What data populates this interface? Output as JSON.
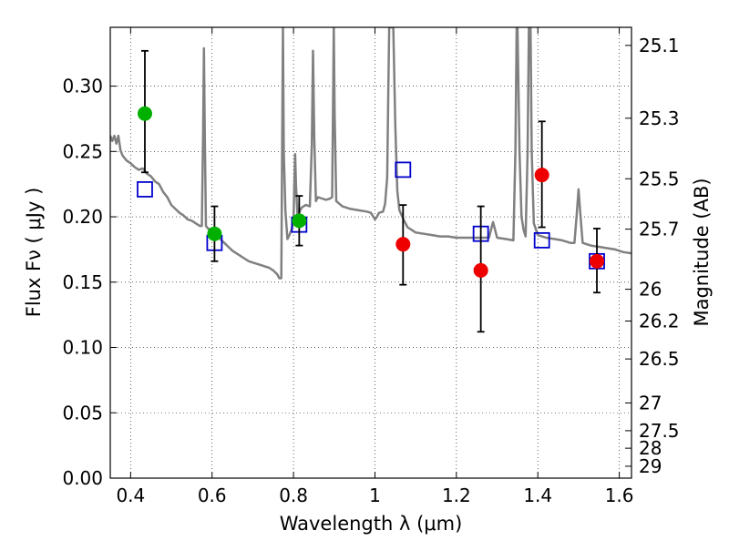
{
  "chart_data": {
    "type": "scatter",
    "title": "",
    "xlabel": "Wavelength  λ (μm)",
    "ylabel": "Flux  Fν  ( μJy )",
    "ylabel_right": "Magnitude (AB)",
    "xlim": [
      0.35,
      1.63
    ],
    "ylim": [
      0.0,
      0.345
    ],
    "x_ticks": [
      0.4,
      0.6,
      0.8,
      1.0,
      1.2,
      1.4,
      1.6
    ],
    "x_tick_labels": [
      "0.4",
      "0.6",
      "0.8",
      "1",
      "1.2",
      "1.4",
      "1.6"
    ],
    "y_ticks": [
      0.0,
      0.05,
      0.1,
      0.15,
      0.2,
      0.25,
      0.3
    ],
    "y_tick_labels": [
      "0.00",
      "0.05",
      "0.10",
      "0.15",
      "0.20",
      "0.25",
      "0.30"
    ],
    "right_ticks": [
      {
        "label": "25.1",
        "mag": 25.1
      },
      {
        "label": "25.3",
        "mag": 25.3
      },
      {
        "label": "25.5",
        "mag": 25.5
      },
      {
        "label": "25.7",
        "mag": 25.7
      },
      {
        "label": "26",
        "mag": 26.0
      },
      {
        "label": "26.2",
        "mag": 26.2
      },
      {
        "label": "26.5",
        "mag": 26.5
      },
      {
        "label": "27",
        "mag": 27.0
      },
      {
        "label": "27.5",
        "mag": 27.5
      },
      {
        "label": "28",
        "mag": 28.0
      },
      {
        "label": "29",
        "mag": 29.0
      }
    ],
    "grid": true,
    "colors": {
      "model": "#808080",
      "green": "#00b000",
      "red": "#ee0000",
      "box": "#0000cc",
      "errorbar": "#000000"
    },
    "series": [
      {
        "kind": "model-line",
        "points": [
          [
            0.35,
            0.262
          ],
          [
            0.355,
            0.258
          ],
          [
            0.36,
            0.262
          ],
          [
            0.365,
            0.256
          ],
          [
            0.37,
            0.262
          ],
          [
            0.375,
            0.251
          ],
          [
            0.38,
            0.247
          ],
          [
            0.39,
            0.243
          ],
          [
            0.4,
            0.241
          ],
          [
            0.41,
            0.238
          ],
          [
            0.42,
            0.236
          ],
          [
            0.43,
            0.237
          ],
          [
            0.44,
            0.233
          ],
          [
            0.45,
            0.231
          ],
          [
            0.46,
            0.227
          ],
          [
            0.47,
            0.225
          ],
          [
            0.48,
            0.219
          ],
          [
            0.49,
            0.215
          ],
          [
            0.5,
            0.209
          ],
          [
            0.51,
            0.206
          ],
          [
            0.52,
            0.203
          ],
          [
            0.53,
            0.201
          ],
          [
            0.54,
            0.198
          ],
          [
            0.55,
            0.197
          ],
          [
            0.56,
            0.195
          ],
          [
            0.57,
            0.193
          ],
          [
            0.575,
            0.193
          ],
          [
            0.578,
            0.265
          ],
          [
            0.58,
            0.329
          ],
          [
            0.582,
            0.265
          ],
          [
            0.585,
            0.193
          ],
          [
            0.59,
            0.191
          ],
          [
            0.6,
            0.19
          ],
          [
            0.61,
            0.186
          ],
          [
            0.62,
            0.183
          ],
          [
            0.63,
            0.18
          ],
          [
            0.64,
            0.177
          ],
          [
            0.65,
            0.174
          ],
          [
            0.66,
            0.172
          ],
          [
            0.67,
            0.17
          ],
          [
            0.68,
            0.168
          ],
          [
            0.69,
            0.166
          ],
          [
            0.7,
            0.165
          ],
          [
            0.71,
            0.164
          ],
          [
            0.72,
            0.163
          ],
          [
            0.73,
            0.162
          ],
          [
            0.74,
            0.161
          ],
          [
            0.75,
            0.159
          ],
          [
            0.76,
            0.156
          ],
          [
            0.765,
            0.153
          ],
          [
            0.77,
            0.153
          ],
          [
            0.772,
            0.25
          ],
          [
            0.774,
            0.345
          ],
          [
            0.776,
            0.25
          ],
          [
            0.78,
            0.205
          ],
          [
            0.785,
            0.183
          ],
          [
            0.79,
            0.186
          ],
          [
            0.795,
            0.19
          ],
          [
            0.8,
            0.197
          ],
          [
            0.802,
            0.225
          ],
          [
            0.804,
            0.248
          ],
          [
            0.806,
            0.225
          ],
          [
            0.81,
            0.199
          ],
          [
            0.815,
            0.204
          ],
          [
            0.82,
            0.207
          ],
          [
            0.83,
            0.209
          ],
          [
            0.84,
            0.208
          ],
          [
            0.845,
            0.255
          ],
          [
            0.848,
            0.327
          ],
          [
            0.851,
            0.26
          ],
          [
            0.855,
            0.212
          ],
          [
            0.86,
            0.215
          ],
          [
            0.87,
            0.214
          ],
          [
            0.88,
            0.213
          ],
          [
            0.89,
            0.214
          ],
          [
            0.895,
            0.215
          ],
          [
            0.897,
            0.28
          ],
          [
            0.899,
            0.345
          ],
          [
            0.901,
            0.28
          ],
          [
            0.905,
            0.212
          ],
          [
            0.92,
            0.208
          ],
          [
            0.94,
            0.206
          ],
          [
            0.96,
            0.205
          ],
          [
            0.98,
            0.204
          ],
          [
            0.99,
            0.203
          ],
          [
            1.0,
            0.198
          ],
          [
            1.005,
            0.2
          ],
          [
            1.01,
            0.203
          ],
          [
            1.02,
            0.204
          ],
          [
            1.025,
            0.21
          ],
          [
            1.03,
            0.23
          ],
          [
            1.033,
            0.3
          ],
          [
            1.035,
            0.345
          ],
          [
            1.045,
            0.345
          ],
          [
            1.05,
            0.27
          ],
          [
            1.055,
            0.22
          ],
          [
            1.06,
            0.205
          ],
          [
            1.07,
            0.198
          ],
          [
            1.08,
            0.192
          ],
          [
            1.1,
            0.188
          ],
          [
            1.12,
            0.187
          ],
          [
            1.14,
            0.186
          ],
          [
            1.16,
            0.185
          ],
          [
            1.18,
            0.185
          ],
          [
            1.2,
            0.184
          ],
          [
            1.22,
            0.184
          ],
          [
            1.24,
            0.184
          ],
          [
            1.26,
            0.184
          ],
          [
            1.28,
            0.184
          ],
          [
            1.285,
            0.19
          ],
          [
            1.29,
            0.196
          ],
          [
            1.295,
            0.19
          ],
          [
            1.3,
            0.184
          ],
          [
            1.32,
            0.183
          ],
          [
            1.34,
            0.182
          ],
          [
            1.345,
            0.25
          ],
          [
            1.348,
            0.345
          ],
          [
            1.35,
            0.345
          ],
          [
            1.355,
            0.25
          ],
          [
            1.36,
            0.2
          ],
          [
            1.365,
            0.19
          ],
          [
            1.37,
            0.185
          ],
          [
            1.375,
            0.25
          ],
          [
            1.378,
            0.345
          ],
          [
            1.382,
            0.345
          ],
          [
            1.385,
            0.25
          ],
          [
            1.39,
            0.195
          ],
          [
            1.4,
            0.186
          ],
          [
            1.42,
            0.184
          ],
          [
            1.44,
            0.183
          ],
          [
            1.46,
            0.182
          ],
          [
            1.47,
            0.181
          ],
          [
            1.48,
            0.18
          ],
          [
            1.49,
            0.18
          ],
          [
            1.495,
            0.2
          ],
          [
            1.5,
            0.221
          ],
          [
            1.505,
            0.2
          ],
          [
            1.51,
            0.18
          ],
          [
            1.53,
            0.178
          ],
          [
            1.55,
            0.177
          ],
          [
            1.57,
            0.176
          ],
          [
            1.59,
            0.175
          ],
          [
            1.61,
            0.173
          ],
          [
            1.63,
            0.172
          ]
        ]
      },
      {
        "kind": "model-boxes",
        "points": [
          {
            "x": 0.435,
            "y": 0.221
          },
          {
            "x": 0.606,
            "y": 0.18
          },
          {
            "x": 0.814,
            "y": 0.194
          },
          {
            "x": 1.069,
            "y": 0.236
          },
          {
            "x": 1.26,
            "y": 0.187
          },
          {
            "x": 1.41,
            "y": 0.182
          },
          {
            "x": 1.545,
            "y": 0.166
          }
        ]
      },
      {
        "kind": "observed-green",
        "points": [
          {
            "x": 0.435,
            "y": 0.279,
            "yerr_lo": 0.234,
            "yerr_hi": 0.327
          },
          {
            "x": 0.606,
            "y": 0.187,
            "yerr_lo": 0.166,
            "yerr_hi": 0.208
          },
          {
            "x": 0.814,
            "y": 0.197,
            "yerr_lo": 0.178,
            "yerr_hi": 0.216
          }
        ]
      },
      {
        "kind": "observed-red",
        "points": [
          {
            "x": 1.069,
            "y": 0.179,
            "yerr_lo": 0.148,
            "yerr_hi": 0.209
          },
          {
            "x": 1.26,
            "y": 0.159,
            "yerr_lo": 0.112,
            "yerr_hi": 0.208
          },
          {
            "x": 1.41,
            "y": 0.232,
            "yerr_lo": 0.192,
            "yerr_hi": 0.273
          },
          {
            "x": 1.545,
            "y": 0.166,
            "yerr_lo": 0.142,
            "yerr_hi": 0.191
          }
        ]
      }
    ]
  }
}
